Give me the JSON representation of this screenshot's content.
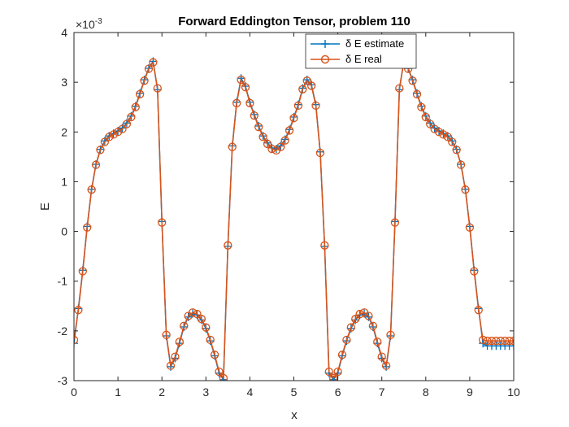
{
  "chart_data": {
    "type": "line",
    "title": "Forward Eddington Tensor, problem 110",
    "xlabel": "x",
    "ylabel": "E",
    "xlim": [
      0,
      10
    ],
    "ylim": [
      -3,
      4
    ],
    "y_exponent_label": "×10",
    "y_exponent_power": "-3",
    "xticks": [
      "0",
      "1",
      "2",
      "3",
      "4",
      "5",
      "6",
      "7",
      "8",
      "9",
      "10"
    ],
    "yticks": [
      "-3",
      "-2",
      "-1",
      "0",
      "1",
      "2",
      "3",
      "4"
    ],
    "legend_position": "top-right",
    "series": [
      {
        "name": "δ E estimate",
        "marker": "plus",
        "color": "#0072bd",
        "x": [
          0.0,
          0.1,
          0.2,
          0.3,
          0.4,
          0.5,
          0.6,
          0.7,
          0.8,
          0.9,
          1.0,
          1.1,
          1.2,
          1.3,
          1.4,
          1.5,
          1.6,
          1.7,
          1.8,
          1.9,
          2.0,
          2.1,
          2.2,
          2.3,
          2.4,
          2.5,
          2.6,
          2.7,
          2.8,
          2.9,
          3.0,
          3.1,
          3.2,
          3.3,
          3.4,
          3.5,
          3.6,
          3.7,
          3.8,
          3.9,
          4.0,
          4.1,
          4.2,
          4.3,
          4.4,
          4.5,
          4.6,
          4.7,
          4.8,
          4.9,
          5.0,
          5.1,
          5.2,
          5.3,
          5.4,
          5.5,
          5.6,
          5.7,
          5.8,
          5.9,
          6.0,
          6.1,
          6.2,
          6.3,
          6.4,
          6.5,
          6.6,
          6.7,
          6.8,
          6.9,
          7.0,
          7.1,
          7.2,
          7.3,
          7.4,
          7.5,
          7.6,
          7.7,
          7.8,
          7.9,
          8.0,
          8.1,
          8.2,
          8.3,
          8.4,
          8.5,
          8.6,
          8.7,
          8.8,
          8.9,
          9.0,
          9.1,
          9.2,
          9.3,
          9.4,
          9.5,
          9.6,
          9.7,
          9.8,
          9.9,
          10.0
        ],
        "y": [
          -2.25,
          -1.55,
          -0.78,
          0.1,
          0.85,
          1.35,
          1.65,
          1.82,
          1.92,
          1.97,
          2.02,
          2.08,
          2.18,
          2.32,
          2.52,
          2.78,
          3.05,
          3.28,
          3.42,
          2.85,
          0.2,
          -2.1,
          -2.72,
          -2.55,
          -2.25,
          -1.92,
          -1.72,
          -1.65,
          -1.68,
          -1.78,
          -1.95,
          -2.2,
          -2.5,
          -2.85,
          -2.98,
          -0.3,
          1.72,
          2.6,
          3.08,
          2.92,
          2.6,
          2.35,
          2.12,
          1.92,
          1.78,
          1.68,
          1.66,
          1.72,
          1.85,
          2.05,
          2.3,
          2.55,
          2.88,
          3.05,
          2.95,
          2.55,
          1.6,
          -0.3,
          -2.85,
          -2.98,
          -2.85,
          -2.5,
          -2.2,
          -1.95,
          -1.78,
          -1.68,
          -1.65,
          -1.72,
          -1.92,
          -2.25,
          -2.55,
          -2.72,
          -2.1,
          0.2,
          2.85,
          3.42,
          3.28,
          3.05,
          2.78,
          2.52,
          2.32,
          2.18,
          2.08,
          2.02,
          1.97,
          1.92,
          1.82,
          1.65,
          1.35,
          0.85,
          0.1,
          -0.78,
          -1.55,
          -2.25,
          -2.3,
          -2.3,
          -2.3,
          -2.3,
          -2.3,
          -2.3,
          -2.3
        ]
      },
      {
        "name": "δ E real",
        "marker": "circle",
        "color": "#d95319",
        "x": [
          0.0,
          0.1,
          0.2,
          0.3,
          0.4,
          0.5,
          0.6,
          0.7,
          0.8,
          0.9,
          1.0,
          1.1,
          1.2,
          1.3,
          1.4,
          1.5,
          1.6,
          1.7,
          1.8,
          1.9,
          2.0,
          2.1,
          2.2,
          2.3,
          2.4,
          2.5,
          2.6,
          2.7,
          2.8,
          2.9,
          3.0,
          3.1,
          3.2,
          3.3,
          3.4,
          3.5,
          3.6,
          3.7,
          3.8,
          3.9,
          4.0,
          4.1,
          4.2,
          4.3,
          4.4,
          4.5,
          4.6,
          4.7,
          4.8,
          4.9,
          5.0,
          5.1,
          5.2,
          5.3,
          5.4,
          5.5,
          5.6,
          5.7,
          5.8,
          5.9,
          6.0,
          6.1,
          6.2,
          6.3,
          6.4,
          6.5,
          6.6,
          6.7,
          6.8,
          6.9,
          7.0,
          7.1,
          7.2,
          7.3,
          7.4,
          7.5,
          7.6,
          7.7,
          7.8,
          7.9,
          8.0,
          8.1,
          8.2,
          8.3,
          8.4,
          8.5,
          8.6,
          8.7,
          8.8,
          8.9,
          9.0,
          9.1,
          9.2,
          9.3,
          9.4,
          9.5,
          9.6,
          9.7,
          9.8,
          9.9,
          10.0
        ],
        "y": [
          -2.18,
          -1.58,
          -0.8,
          0.08,
          0.84,
          1.34,
          1.64,
          1.8,
          1.9,
          1.95,
          2.0,
          2.06,
          2.16,
          2.3,
          2.5,
          2.76,
          3.03,
          3.27,
          3.4,
          2.88,
          0.18,
          -2.08,
          -2.7,
          -2.52,
          -2.22,
          -1.9,
          -1.7,
          -1.63,
          -1.66,
          -1.76,
          -1.93,
          -2.18,
          -2.48,
          -2.82,
          -2.95,
          -0.28,
          1.7,
          2.58,
          3.05,
          2.9,
          2.58,
          2.33,
          2.1,
          1.9,
          1.76,
          1.66,
          1.63,
          1.7,
          1.83,
          2.03,
          2.28,
          2.53,
          2.86,
          3.03,
          2.93,
          2.53,
          1.58,
          -0.28,
          -2.82,
          -2.95,
          -2.82,
          -2.48,
          -2.18,
          -1.93,
          -1.76,
          -1.66,
          -1.63,
          -1.7,
          -1.9,
          -2.22,
          -2.52,
          -2.7,
          -2.08,
          0.18,
          2.88,
          3.4,
          3.27,
          3.03,
          2.76,
          2.5,
          2.3,
          2.16,
          2.06,
          2.0,
          1.95,
          1.9,
          1.8,
          1.64,
          1.34,
          0.84,
          0.08,
          -0.8,
          -1.58,
          -2.18,
          -2.2,
          -2.2,
          -2.2,
          -2.2,
          -2.2,
          -2.2,
          -2.2
        ]
      }
    ]
  }
}
